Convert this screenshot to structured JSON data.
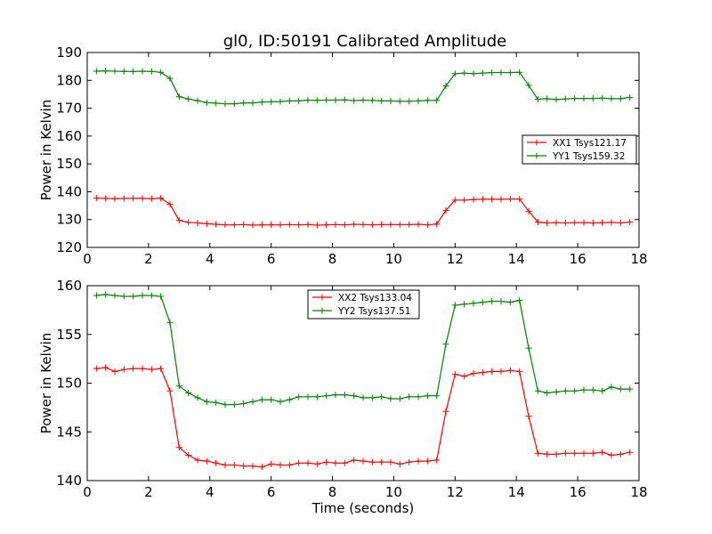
{
  "chart_data": {
    "title": "gl0, ID:50191 Calibrated Amplitude",
    "colors": {
      "XX": "#ff0000",
      "YY": "#008000"
    },
    "panels": [
      {
        "type": "line",
        "xlabel": "",
        "ylabel": "Power in Kelvin",
        "xlim": [
          0,
          18
        ],
        "ylim": [
          120,
          190
        ],
        "xticks": [
          0,
          2,
          4,
          6,
          8,
          10,
          12,
          14,
          16,
          18
        ],
        "yticks": [
          120,
          130,
          140,
          150,
          160,
          170,
          180,
          190
        ],
        "legend_position": "center-right",
        "grid": false,
        "series": [
          {
            "name": "XX1 Tsys121.17",
            "color_key": "XX",
            "x": [
              0.3,
              0.6,
              0.9,
              1.2,
              1.5,
              1.8,
              2.1,
              2.4,
              2.7,
              3.0,
              3.3,
              3.6,
              3.9,
              4.2,
              4.5,
              4.8,
              5.1,
              5.4,
              5.7,
              6.0,
              6.3,
              6.6,
              6.9,
              7.2,
              7.5,
              7.8,
              8.1,
              8.4,
              8.7,
              9.0,
              9.3,
              9.6,
              9.9,
              10.2,
              10.5,
              10.8,
              11.1,
              11.4,
              11.7,
              12.0,
              12.3,
              12.6,
              12.9,
              13.2,
              13.5,
              13.8,
              14.1,
              14.4,
              14.7,
              15.0,
              15.3,
              15.6,
              15.9,
              16.2,
              16.5,
              16.8,
              17.1,
              17.4,
              17.7
            ],
            "y": [
              137.7,
              137.6,
              137.5,
              137.6,
              137.6,
              137.6,
              137.5,
              137.7,
              135.5,
              129.7,
              129.0,
              128.8,
              128.5,
              128.3,
              128.1,
              128.1,
              128.2,
              128.0,
              128.1,
              128.1,
              128.1,
              128.2,
              128.1,
              128.2,
              128.0,
              128.1,
              128.2,
              128.1,
              128.3,
              128.2,
              128.1,
              128.2,
              128.2,
              128.2,
              128.2,
              128.3,
              128.1,
              128.4,
              133.3,
              137.0,
              137.0,
              137.2,
              137.3,
              137.3,
              137.3,
              137.4,
              137.4,
              133.0,
              129.1,
              128.8,
              128.9,
              128.8,
              128.9,
              128.9,
              128.8,
              128.9,
              129.0,
              128.8,
              129.1
            ]
          },
          {
            "name": "YY1 Tsys159.32",
            "color_key": "YY",
            "x": [
              0.3,
              0.6,
              0.9,
              1.2,
              1.5,
              1.8,
              2.1,
              2.4,
              2.7,
              3.0,
              3.3,
              3.6,
              3.9,
              4.2,
              4.5,
              4.8,
              5.1,
              5.4,
              5.7,
              6.0,
              6.3,
              6.6,
              6.9,
              7.2,
              7.5,
              7.8,
              8.1,
              8.4,
              8.7,
              9.0,
              9.3,
              9.6,
              9.9,
              10.2,
              10.5,
              10.8,
              11.1,
              11.4,
              11.7,
              12.0,
              12.3,
              12.6,
              12.9,
              13.2,
              13.5,
              13.8,
              14.1,
              14.4,
              14.7,
              15.0,
              15.3,
              15.6,
              15.9,
              16.2,
              16.5,
              16.8,
              17.1,
              17.4,
              17.7
            ],
            "y": [
              183.3,
              183.4,
              183.3,
              183.2,
              183.2,
              183.3,
              183.2,
              182.9,
              180.7,
              174.1,
              173.3,
              172.7,
              172.0,
              171.8,
              171.6,
              171.6,
              171.9,
              171.9,
              172.2,
              172.3,
              172.4,
              172.6,
              172.6,
              172.9,
              172.8,
              172.9,
              172.9,
              173.0,
              172.7,
              172.9,
              172.8,
              172.6,
              172.6,
              172.5,
              172.5,
              172.6,
              172.8,
              172.8,
              178.0,
              182.4,
              182.6,
              182.4,
              182.6,
              182.8,
              182.8,
              182.8,
              182.9,
              178.2,
              173.2,
              173.4,
              173.1,
              173.3,
              173.5,
              173.5,
              173.5,
              173.6,
              173.4,
              173.4,
              173.9
            ]
          }
        ]
      },
      {
        "type": "line",
        "xlabel": "Time (seconds)",
        "ylabel": "Power in Kelvin",
        "xlim": [
          0,
          18
        ],
        "ylim": [
          140,
          160
        ],
        "xticks": [
          0,
          2,
          4,
          6,
          8,
          10,
          12,
          14,
          16,
          18
        ],
        "yticks": [
          140,
          145,
          150,
          155,
          160
        ],
        "legend_position": "upper-center",
        "grid": false,
        "series": [
          {
            "name": "XX2 Tsys133.04",
            "color_key": "XX",
            "x": [
              0.3,
              0.6,
              0.9,
              1.2,
              1.5,
              1.8,
              2.1,
              2.4,
              2.7,
              3.0,
              3.3,
              3.6,
              3.9,
              4.2,
              4.5,
              4.8,
              5.1,
              5.4,
              5.7,
              6.0,
              6.3,
              6.6,
              6.9,
              7.2,
              7.5,
              7.8,
              8.1,
              8.4,
              8.7,
              9.0,
              9.3,
              9.6,
              9.9,
              10.2,
              10.5,
              10.8,
              11.1,
              11.4,
              11.7,
              12.0,
              12.3,
              12.6,
              12.9,
              13.2,
              13.5,
              13.8,
              14.1,
              14.4,
              14.7,
              15.0,
              15.3,
              15.6,
              15.9,
              16.2,
              16.5,
              16.8,
              17.1,
              17.4,
              17.7
            ],
            "y": [
              151.5,
              151.6,
              151.2,
              151.4,
              151.5,
              151.5,
              151.4,
              151.5,
              149.2,
              143.4,
              142.6,
              142.1,
              142.0,
              141.8,
              141.6,
              141.6,
              141.5,
              141.5,
              141.4,
              141.7,
              141.6,
              141.6,
              141.8,
              141.8,
              141.7,
              141.9,
              141.8,
              141.8,
              142.1,
              142.0,
              141.9,
              141.9,
              141.9,
              141.7,
              141.9,
              142.0,
              142.0,
              142.1,
              147.1,
              150.9,
              150.7,
              151.0,
              151.1,
              151.2,
              151.2,
              151.3,
              151.2,
              146.6,
              142.8,
              142.7,
              142.7,
              142.8,
              142.8,
              142.8,
              142.8,
              142.9,
              142.6,
              142.7,
              142.9
            ]
          },
          {
            "name": "YY2 Tsys137.51",
            "color_key": "YY",
            "x": [
              0.3,
              0.6,
              0.9,
              1.2,
              1.5,
              1.8,
              2.1,
              2.4,
              2.7,
              3.0,
              3.3,
              3.6,
              3.9,
              4.2,
              4.5,
              4.8,
              5.1,
              5.4,
              5.7,
              6.0,
              6.3,
              6.6,
              6.9,
              7.2,
              7.5,
              7.8,
              8.1,
              8.4,
              8.7,
              9.0,
              9.3,
              9.6,
              9.9,
              10.2,
              10.5,
              10.8,
              11.1,
              11.4,
              11.7,
              12.0,
              12.3,
              12.6,
              12.9,
              13.2,
              13.5,
              13.8,
              14.1,
              14.4,
              14.7,
              15.0,
              15.3,
              15.6,
              15.9,
              16.2,
              16.5,
              16.8,
              17.1,
              17.4,
              17.7
            ],
            "y": [
              159.0,
              159.1,
              159.0,
              158.9,
              158.9,
              159.0,
              159.0,
              158.9,
              156.2,
              149.7,
              149.0,
              148.5,
              148.1,
              148.0,
              147.8,
              147.8,
              147.9,
              148.1,
              148.3,
              148.3,
              148.1,
              148.3,
              148.6,
              148.6,
              148.6,
              148.7,
              148.8,
              148.8,
              148.7,
              148.5,
              148.5,
              148.6,
              148.4,
              148.4,
              148.6,
              148.6,
              148.7,
              148.7,
              154.0,
              158.0,
              158.1,
              158.2,
              158.3,
              158.4,
              158.4,
              158.3,
              158.5,
              153.6,
              149.2,
              149.0,
              149.1,
              149.2,
              149.2,
              149.3,
              149.3,
              149.2,
              149.6,
              149.4,
              149.4
            ]
          }
        ]
      }
    ]
  }
}
